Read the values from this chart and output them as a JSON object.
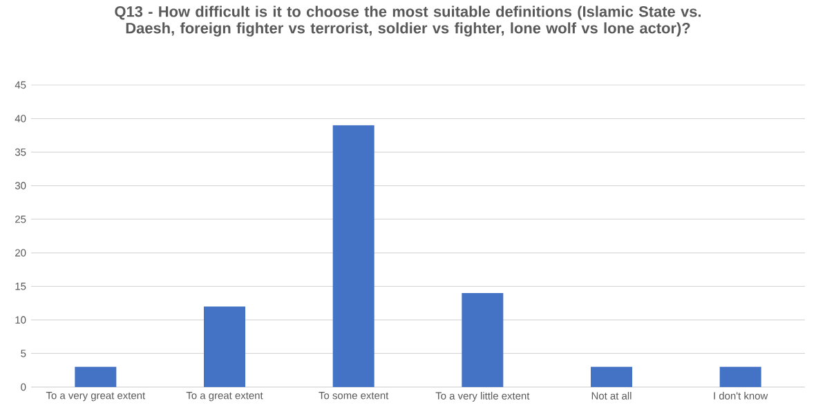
{
  "chart_data": {
    "type": "bar",
    "title": "Q13 - How difficult is it to choose the most suitable definitions (Islamic State vs. Daesh, foreign fighter vs terrorist, soldier vs fighter, lone wolf vs lone actor)?",
    "categories": [
      "To a very great extent",
      "To a great extent",
      "To some extent",
      "To a very little extent",
      "Not at all",
      "I don't know"
    ],
    "values": [
      3,
      12,
      39,
      14,
      3,
      3
    ],
    "color": "#4472c4",
    "ylim": [
      0,
      45
    ],
    "yticks": [
      0,
      5,
      10,
      15,
      20,
      25,
      30,
      35,
      40,
      45
    ],
    "grid": "y"
  }
}
